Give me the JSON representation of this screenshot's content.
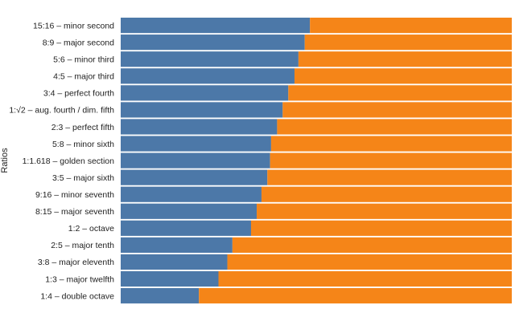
{
  "chart_data": {
    "type": "bar",
    "orientation": "horizontal",
    "stacked": true,
    "normalized": true,
    "ylabel": "Ratios",
    "xlim": [
      0,
      1
    ],
    "grid": false,
    "legend": "none",
    "categories": [
      "15:16 – minor second",
      "8:9 – major second",
      "5:6 – minor third",
      "4:5 – major third",
      "3:4 – perfect fourth",
      "1:√2 – aug. fourth / dim. fifth",
      "2:3 – perfect fifth",
      "5:8 – minor sixth",
      "1:1.618 – golden section",
      "3:5 – major sixth",
      "9:16 – minor seventh",
      "8:15 – major seventh",
      "1:2 – octave",
      "2:5 – major tenth",
      "3:8 – major eleventh",
      "1:3 – major twelfth",
      "1:4 – double octave"
    ],
    "series": [
      {
        "values": [
          0.4839,
          0.4706,
          0.4545,
          0.4444,
          0.4286,
          0.4142,
          0.4,
          0.3846,
          0.382,
          0.375,
          0.36,
          0.3478,
          0.3333,
          0.2857,
          0.2727,
          0.25,
          0.2
        ],
        "color": "#4c78a8"
      },
      {
        "values": [
          0.5161,
          0.5294,
          0.5455,
          0.5556,
          0.5714,
          0.5858,
          0.6,
          0.6154,
          0.618,
          0.625,
          0.64,
          0.6522,
          0.6667,
          0.7143,
          0.7273,
          0.75,
          0.8
        ],
        "color": "#f58518"
      }
    ]
  }
}
